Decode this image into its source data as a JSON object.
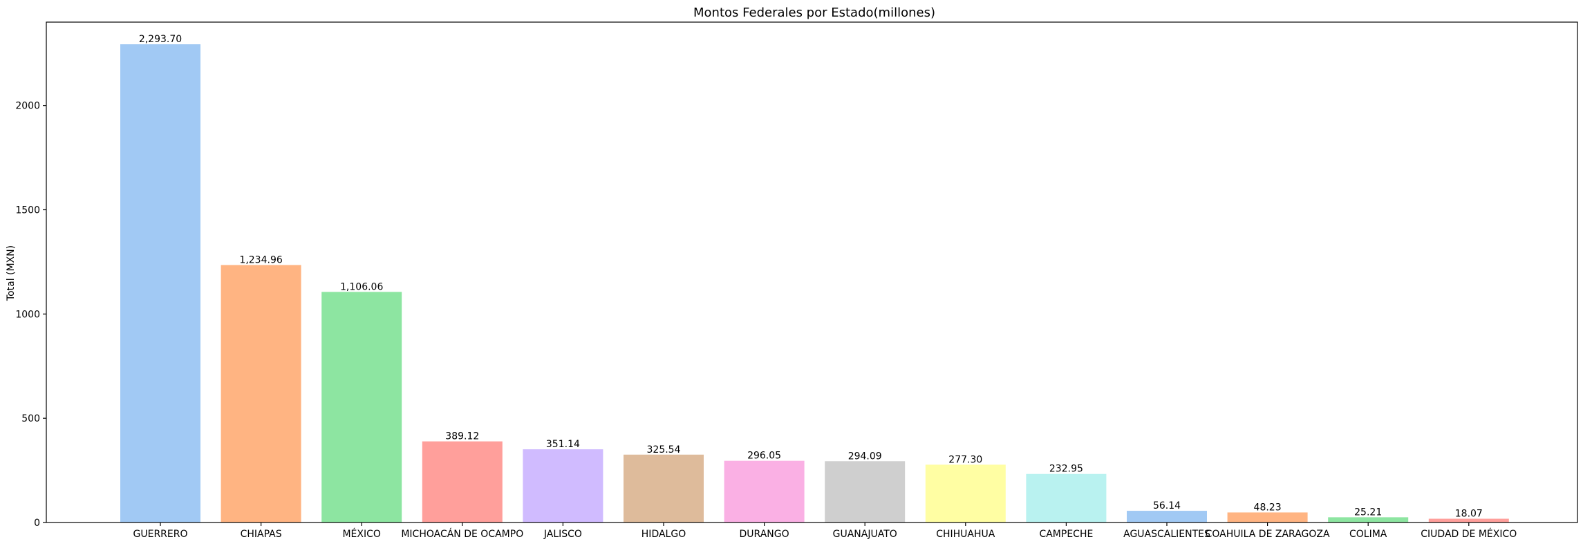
{
  "chart_data": {
    "type": "bar",
    "title": "Montos Federales por Estado(millones)",
    "xlabel": "",
    "ylabel": "Total (MXN)",
    "ylim": [
      0,
      2400
    ],
    "yticks": [
      0,
      500,
      1000,
      1500,
      2000
    ],
    "grid": false,
    "categories": [
      "GUERRERO",
      "CHIAPAS",
      "MÉXICO",
      "MICHOACÁN DE OCAMPO",
      "JALISCO",
      "HIDALGO",
      "DURANGO",
      "GUANAJUATO",
      "CHIHUAHUA",
      "CAMPECHE",
      "AGUASCALIENTES",
      "COAHUILA DE ZARAGOZA",
      "COLIMA",
      "CIUDAD DE MÉXICO"
    ],
    "values": [
      2293.7,
      1234.96,
      1106.06,
      389.12,
      351.14,
      325.54,
      296.05,
      294.09,
      277.3,
      232.95,
      56.14,
      48.23,
      25.21,
      18.07
    ],
    "value_labels": [
      "2,293.70",
      "1,234.96",
      "1,106.06",
      "389.12",
      "351.14",
      "325.54",
      "296.05",
      "294.09",
      "277.30",
      "232.95",
      "56.14",
      "48.23",
      "25.21",
      "18.07"
    ],
    "colors": [
      "#a1c9f4",
      "#ffb482",
      "#8de5a1",
      "#ff9f9b",
      "#d0bbff",
      "#debb9b",
      "#fab0e4",
      "#cfcfcf",
      "#fffea3",
      "#b9f2f0",
      "#a1c9f4",
      "#ffb482",
      "#8de5a1",
      "#ff9f9b"
    ]
  }
}
